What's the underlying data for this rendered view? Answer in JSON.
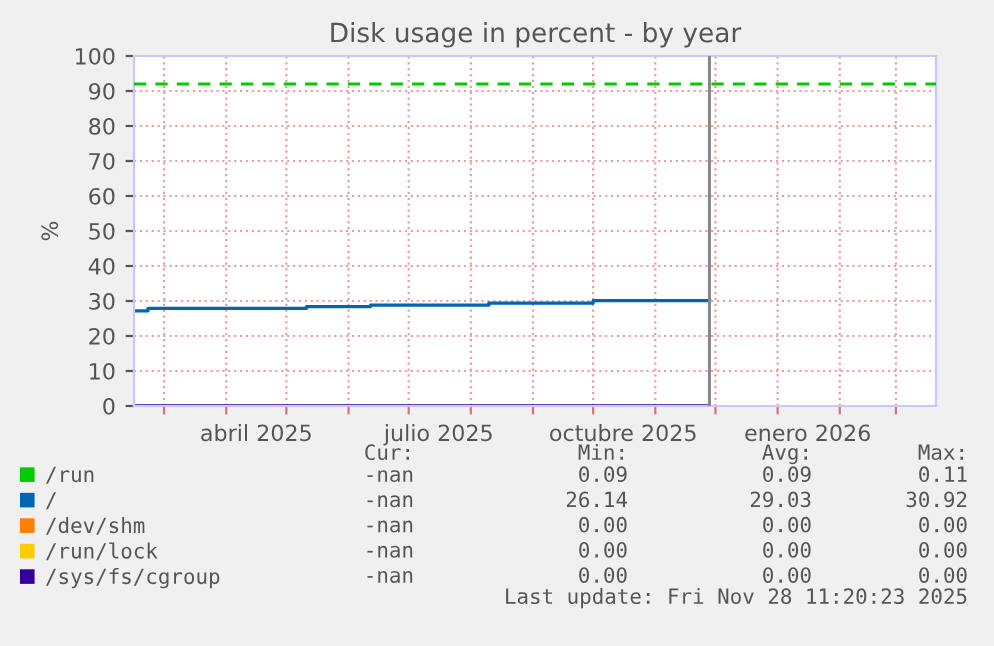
{
  "chart_data": {
    "type": "step",
    "title": "Disk usage in percent - by year",
    "ylabel": "%",
    "xlim": [
      "2025-02-14",
      "2026-03-21"
    ],
    "xticks": [
      {
        "value": "2025-03-01",
        "label": null
      },
      {
        "value": "2025-04-01",
        "label": null
      },
      {
        "value": "2025-05-01",
        "label": null
      },
      {
        "value": "2025-06-01",
        "label": null
      },
      {
        "value": "2025-07-01",
        "label": null
      },
      {
        "value": "2025-08-01",
        "label": null
      },
      {
        "value": "2025-09-01",
        "label": null
      },
      {
        "value": "2025-10-01",
        "label": null
      },
      {
        "value": "2025-11-01",
        "label": null
      },
      {
        "value": "2025-12-01",
        "label": null
      },
      {
        "value": "2026-01-01",
        "label": null
      },
      {
        "value": "2026-02-01",
        "label": null
      },
      {
        "value": "2026-03-01",
        "label": null
      },
      {
        "value": "2025-04-16",
        "label": "abril 2025"
      },
      {
        "value": "2025-07-16",
        "label": "julio 2025"
      },
      {
        "value": "2025-10-16",
        "label": "octubre 2025"
      },
      {
        "value": "2026-01-16",
        "label": "enero 2026"
      }
    ],
    "ylim": [
      0,
      100
    ],
    "yticks": [
      0,
      10,
      20,
      30,
      40,
      50,
      60,
      70,
      80,
      90,
      100
    ],
    "grid": true,
    "legend": "bottom",
    "series": [
      {
        "name": "/run",
        "color": "#00cc00"
      },
      {
        "name": "/",
        "color": "#0066b3",
        "x": [
          "2025-02-15",
          "2025-02-21",
          "2025-05-11",
          "2025-06-12",
          "2025-08-10",
          "2025-10-01",
          "2025-11-28"
        ],
        "values": [
          27.2,
          27.9,
          28.4,
          28.8,
          29.4,
          30.1,
          30.1
        ]
      },
      {
        "name": "/dev/shm",
        "color": "#ff8000"
      },
      {
        "name": "/run/lock",
        "color": "#ffcc00"
      },
      {
        "name": "/sys/fs/cgroup",
        "color": "#330099",
        "x": [
          "2025-02-15",
          "2025-11-28"
        ],
        "values": [
          0,
          0
        ]
      }
    ],
    "ref_lines": [
      {
        "axis": "y",
        "value": 92,
        "color": "#00cc00",
        "line_style": "dashed"
      },
      {
        "axis": "x",
        "value": "2025-11-28",
        "color": "#888888",
        "line_style": "solid"
      }
    ],
    "annotations": [
      "Cur: Min: Avg: Max:",
      "-nan 0.09 0.09 0.11",
      "-nan 26.14 29.03 30.92",
      "-nan 0.00 0.00 0.00",
      "-nan 0.00 0.00 0.00",
      "-nan 0.00 0.00 0.00",
      "Last update: Fri Nov 28 11:20:23 2025"
    ]
  }
}
